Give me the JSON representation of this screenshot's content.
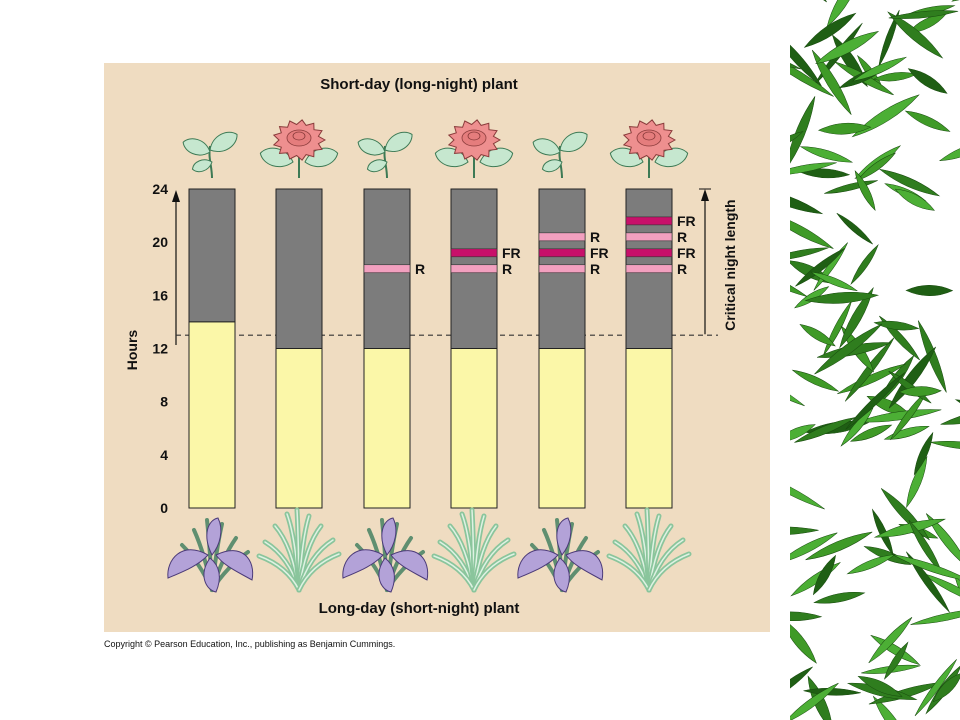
{
  "titles": {
    "top": "Short-day (long-night) plant",
    "bottom": "Long-day (short-night) plant"
  },
  "copyright": "Copyright © Pearson Education, Inc., publishing as Benjamin Cummings.",
  "chart_data": {
    "type": "bar",
    "ylabel": "Hours",
    "ylim": [
      0,
      24
    ],
    "yticks": [
      0,
      4,
      8,
      12,
      16,
      20,
      24
    ],
    "critical_line": 13,
    "critical_label": "Critical night length",
    "colors": {
      "day": "#fbf7a8",
      "night": "#7c7c7c",
      "R": "#f2a0bf",
      "FR": "#c8106a"
    },
    "bars": [
      {
        "day": 14,
        "flashes": [],
        "top_plant": "leaf",
        "bottom_plant": "iris"
      },
      {
        "day": 12,
        "flashes": [],
        "top_plant": "flower",
        "bottom_plant": "grass"
      },
      {
        "day": 12,
        "flashes": [
          {
            "type": "R",
            "hour": 18,
            "label": "R"
          }
        ],
        "top_plant": "leaf",
        "bottom_plant": "iris"
      },
      {
        "day": 12,
        "flashes": [
          {
            "type": "R",
            "hour": 18,
            "label": "R"
          },
          {
            "type": "FR",
            "hour": 19.2,
            "label": "FR"
          }
        ],
        "top_plant": "flower",
        "bottom_plant": "grass"
      },
      {
        "day": 12,
        "flashes": [
          {
            "type": "R",
            "hour": 18,
            "label": "R"
          },
          {
            "type": "FR",
            "hour": 19.2,
            "label": "FR"
          },
          {
            "type": "R",
            "hour": 20.4,
            "label": "R"
          }
        ],
        "top_plant": "leaf",
        "bottom_plant": "iris"
      },
      {
        "day": 12,
        "flashes": [
          {
            "type": "R",
            "hour": 18,
            "label": "R"
          },
          {
            "type": "FR",
            "hour": 19.2,
            "label": "FR"
          },
          {
            "type": "R",
            "hour": 20.4,
            "label": "R"
          },
          {
            "type": "FR",
            "hour": 21.6,
            "label": "FR"
          }
        ],
        "top_plant": "flower",
        "bottom_plant": "grass"
      }
    ]
  }
}
